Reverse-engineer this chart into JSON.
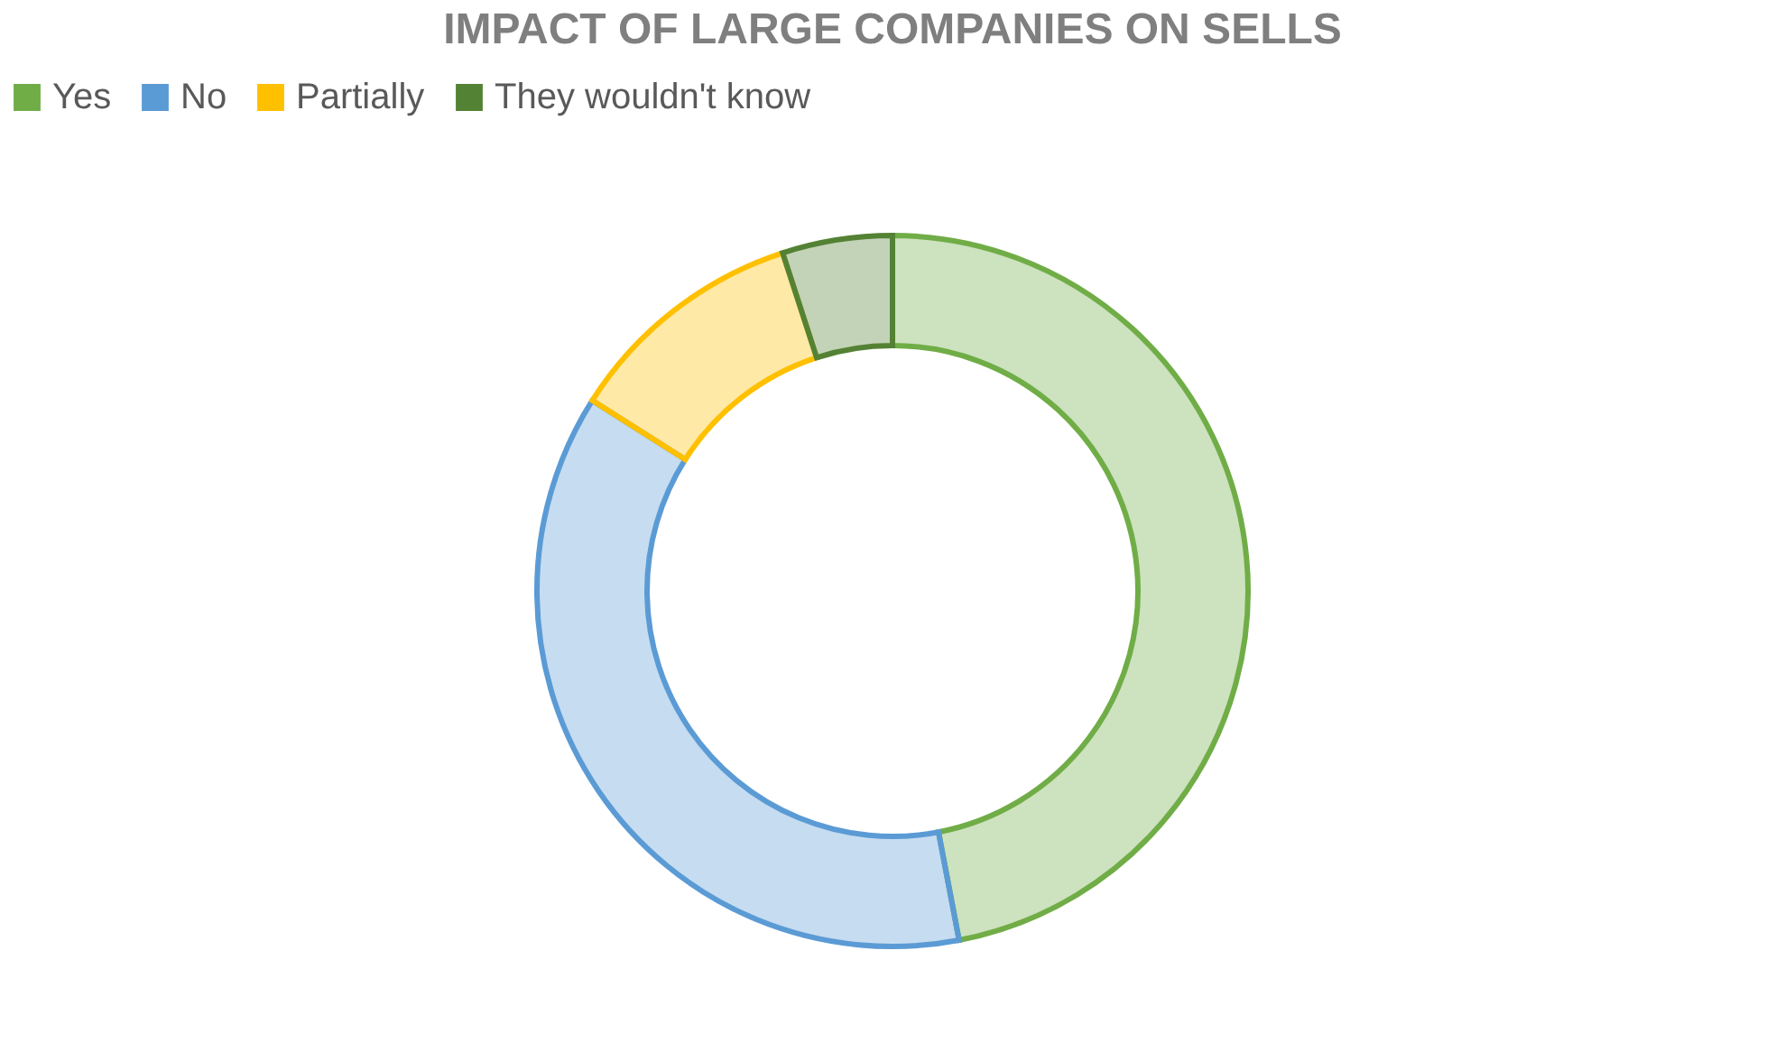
{
  "chart_data": {
    "type": "donut",
    "title": "IMPACT OF LARGE COMPANIES ON SELLS",
    "categories": [
      "Yes",
      "No",
      "Partially",
      "They wouldn't know"
    ],
    "values": [
      47,
      37,
      11,
      5
    ],
    "colors": [
      "#70ad47",
      "#5b9bd5",
      "#ffc000",
      "#548235"
    ],
    "legend": "top"
  }
}
